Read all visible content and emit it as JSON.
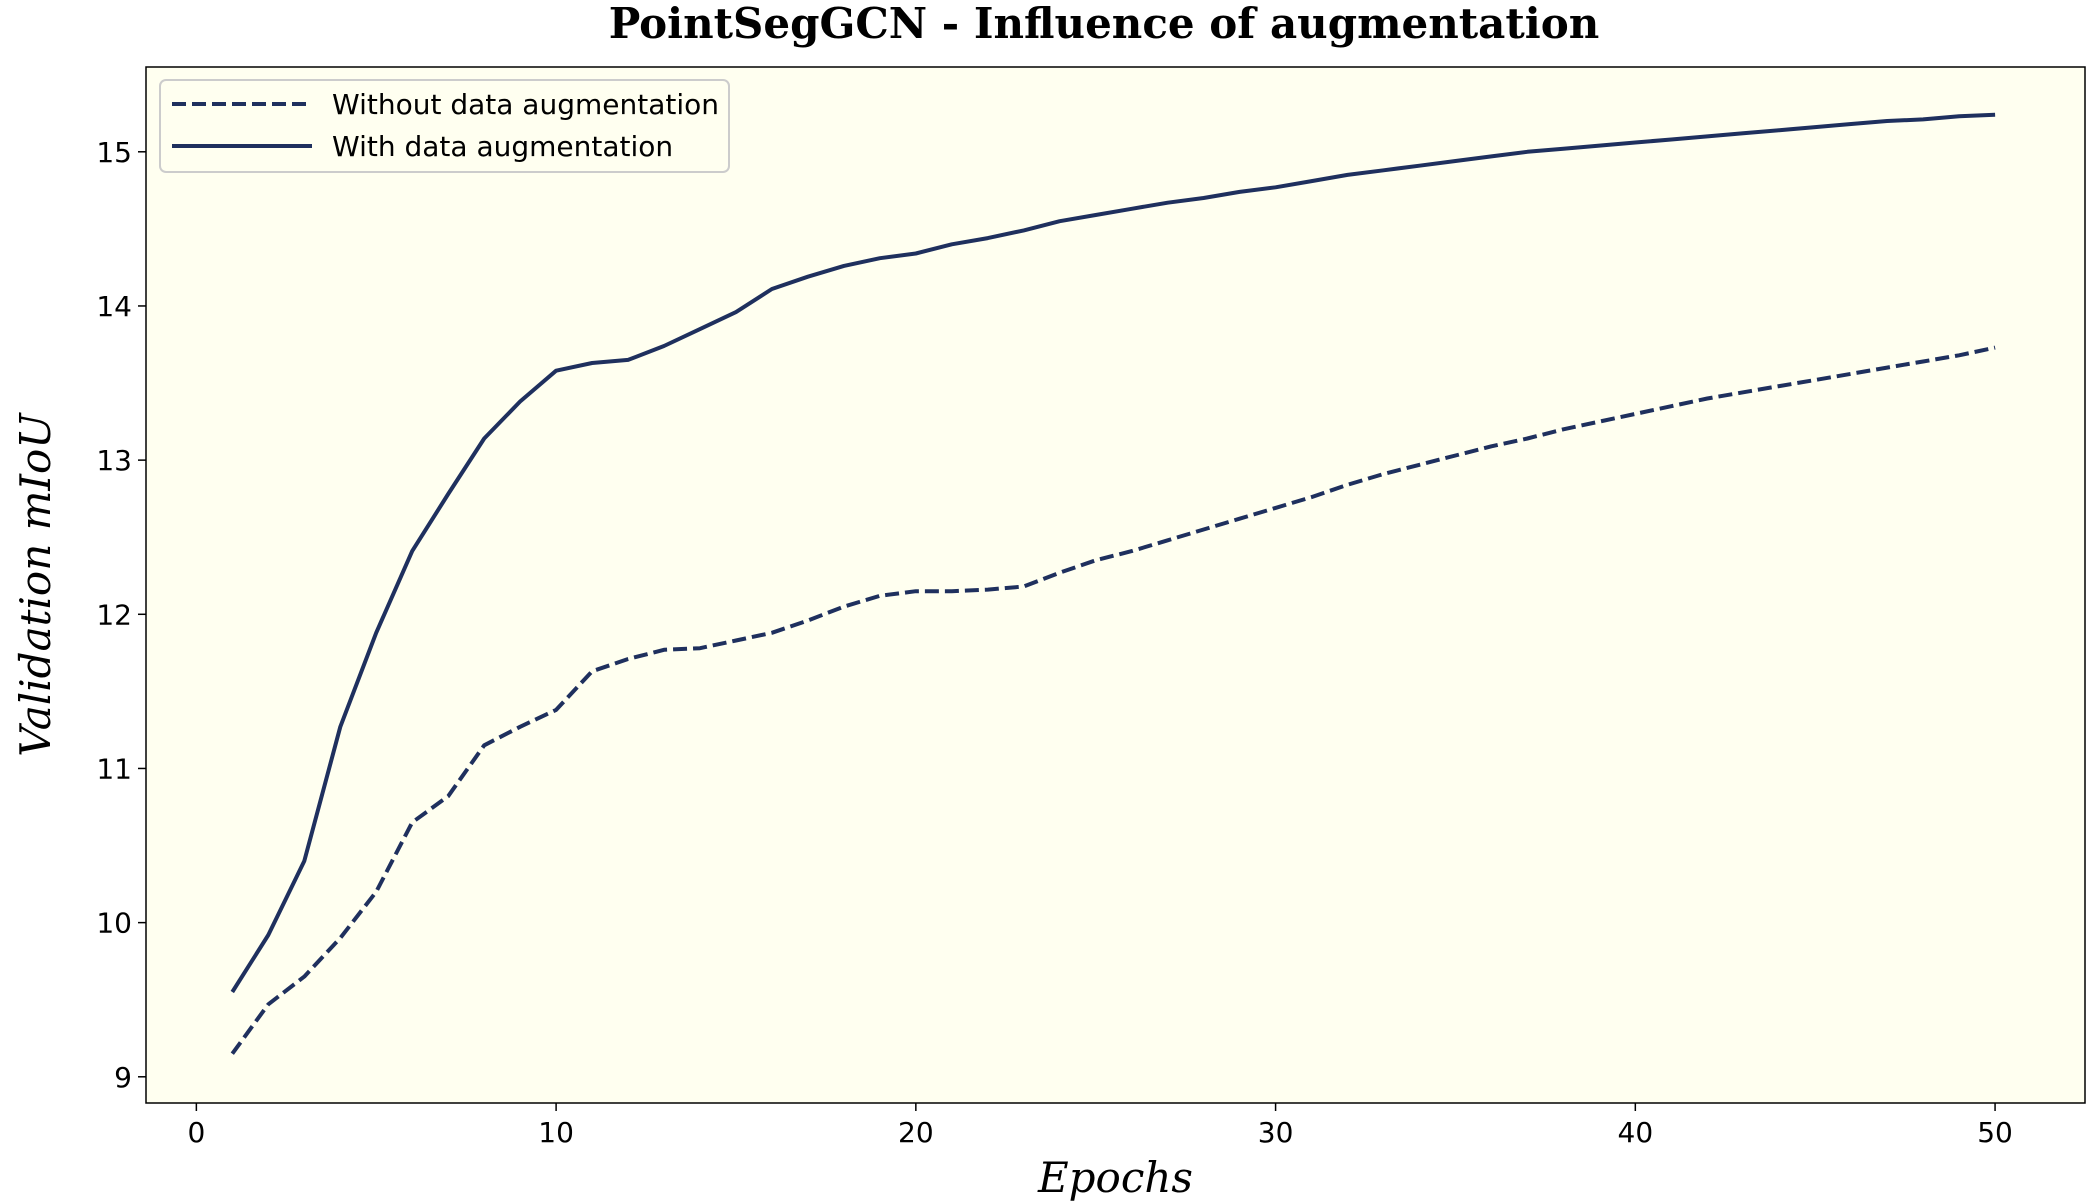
{
  "chart_data": {
    "type": "line",
    "title": "PointSegGCN - Influence of augmentation",
    "xlabel": "Epochs",
    "ylabel": "Validation mIoU",
    "xlim": [
      -1.4,
      52.5
    ],
    "ylim": [
      8.83,
      15.55
    ],
    "xticks": [
      0,
      10,
      20,
      30,
      40,
      50
    ],
    "yticks": [
      9,
      10,
      11,
      12,
      13,
      14,
      15
    ],
    "grid": false,
    "legend_position": "top-left",
    "colors": {
      "background": "#fffff0",
      "line": "#1f305e"
    },
    "x": [
      1,
      2,
      3,
      4,
      5,
      6,
      7,
      8,
      9,
      10,
      11,
      12,
      13,
      14,
      15,
      16,
      17,
      18,
      19,
      20,
      21,
      22,
      23,
      24,
      25,
      26,
      27,
      28,
      29,
      30,
      31,
      32,
      33,
      34,
      35,
      36,
      37,
      38,
      39,
      40,
      41,
      42,
      43,
      44,
      45,
      46,
      47,
      48,
      49,
      50
    ],
    "series": [
      {
        "name": "Without data augmentation",
        "style": "dashed",
        "values": [
          9.15,
          9.47,
          9.65,
          9.9,
          10.2,
          10.65,
          10.82,
          11.15,
          11.27,
          11.38,
          11.63,
          11.71,
          11.77,
          11.78,
          11.83,
          11.88,
          11.96,
          12.05,
          12.12,
          12.15,
          12.15,
          12.16,
          12.18,
          12.27,
          12.35,
          12.41,
          12.48,
          12.55,
          12.62,
          12.69,
          12.76,
          12.84,
          12.91,
          12.97,
          13.03,
          13.09,
          13.14,
          13.2,
          13.25,
          13.3,
          13.35,
          13.4,
          13.44,
          13.48,
          13.52,
          13.56,
          13.6,
          13.64,
          13.68,
          13.73
        ]
      },
      {
        "name": "With data augmentation",
        "style": "solid",
        "values": [
          9.55,
          9.92,
          10.4,
          11.27,
          11.88,
          12.41,
          12.78,
          13.14,
          13.38,
          13.58,
          13.63,
          13.65,
          13.74,
          13.85,
          13.96,
          14.11,
          14.19,
          14.26,
          14.31,
          14.34,
          14.4,
          14.44,
          14.49,
          14.55,
          14.59,
          14.63,
          14.67,
          14.7,
          14.74,
          14.77,
          14.81,
          14.85,
          14.88,
          14.91,
          14.94,
          14.97,
          15.0,
          15.02,
          15.04,
          15.06,
          15.08,
          15.1,
          15.12,
          15.14,
          15.16,
          15.18,
          15.2,
          15.21,
          15.23,
          15.24
        ]
      }
    ]
  }
}
